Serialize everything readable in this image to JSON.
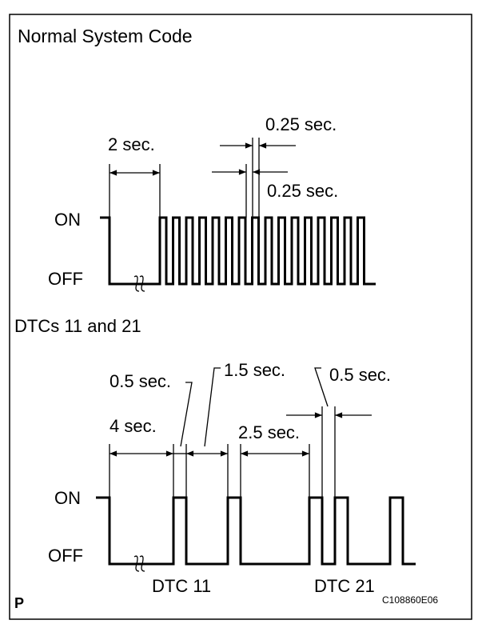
{
  "normal": {
    "title": "Normal System Code",
    "interval": "2 sec.",
    "on_time": "0.25 sec.",
    "off_time": "0.25 sec.",
    "on": "ON",
    "off": "OFF"
  },
  "dtc": {
    "title": "DTCs 11 and 21",
    "pulse_a": "0.5 sec.",
    "gap_a": "1.5 sec.",
    "pulse_b": "0.5 sec.",
    "interval": "4 sec.",
    "gap_b": "2.5 sec.",
    "on": "ON",
    "off": "OFF",
    "code_a": "DTC 11",
    "code_b": "DTC 21"
  },
  "footer": {
    "mark": "P",
    "ref": "C108860E06"
  }
}
